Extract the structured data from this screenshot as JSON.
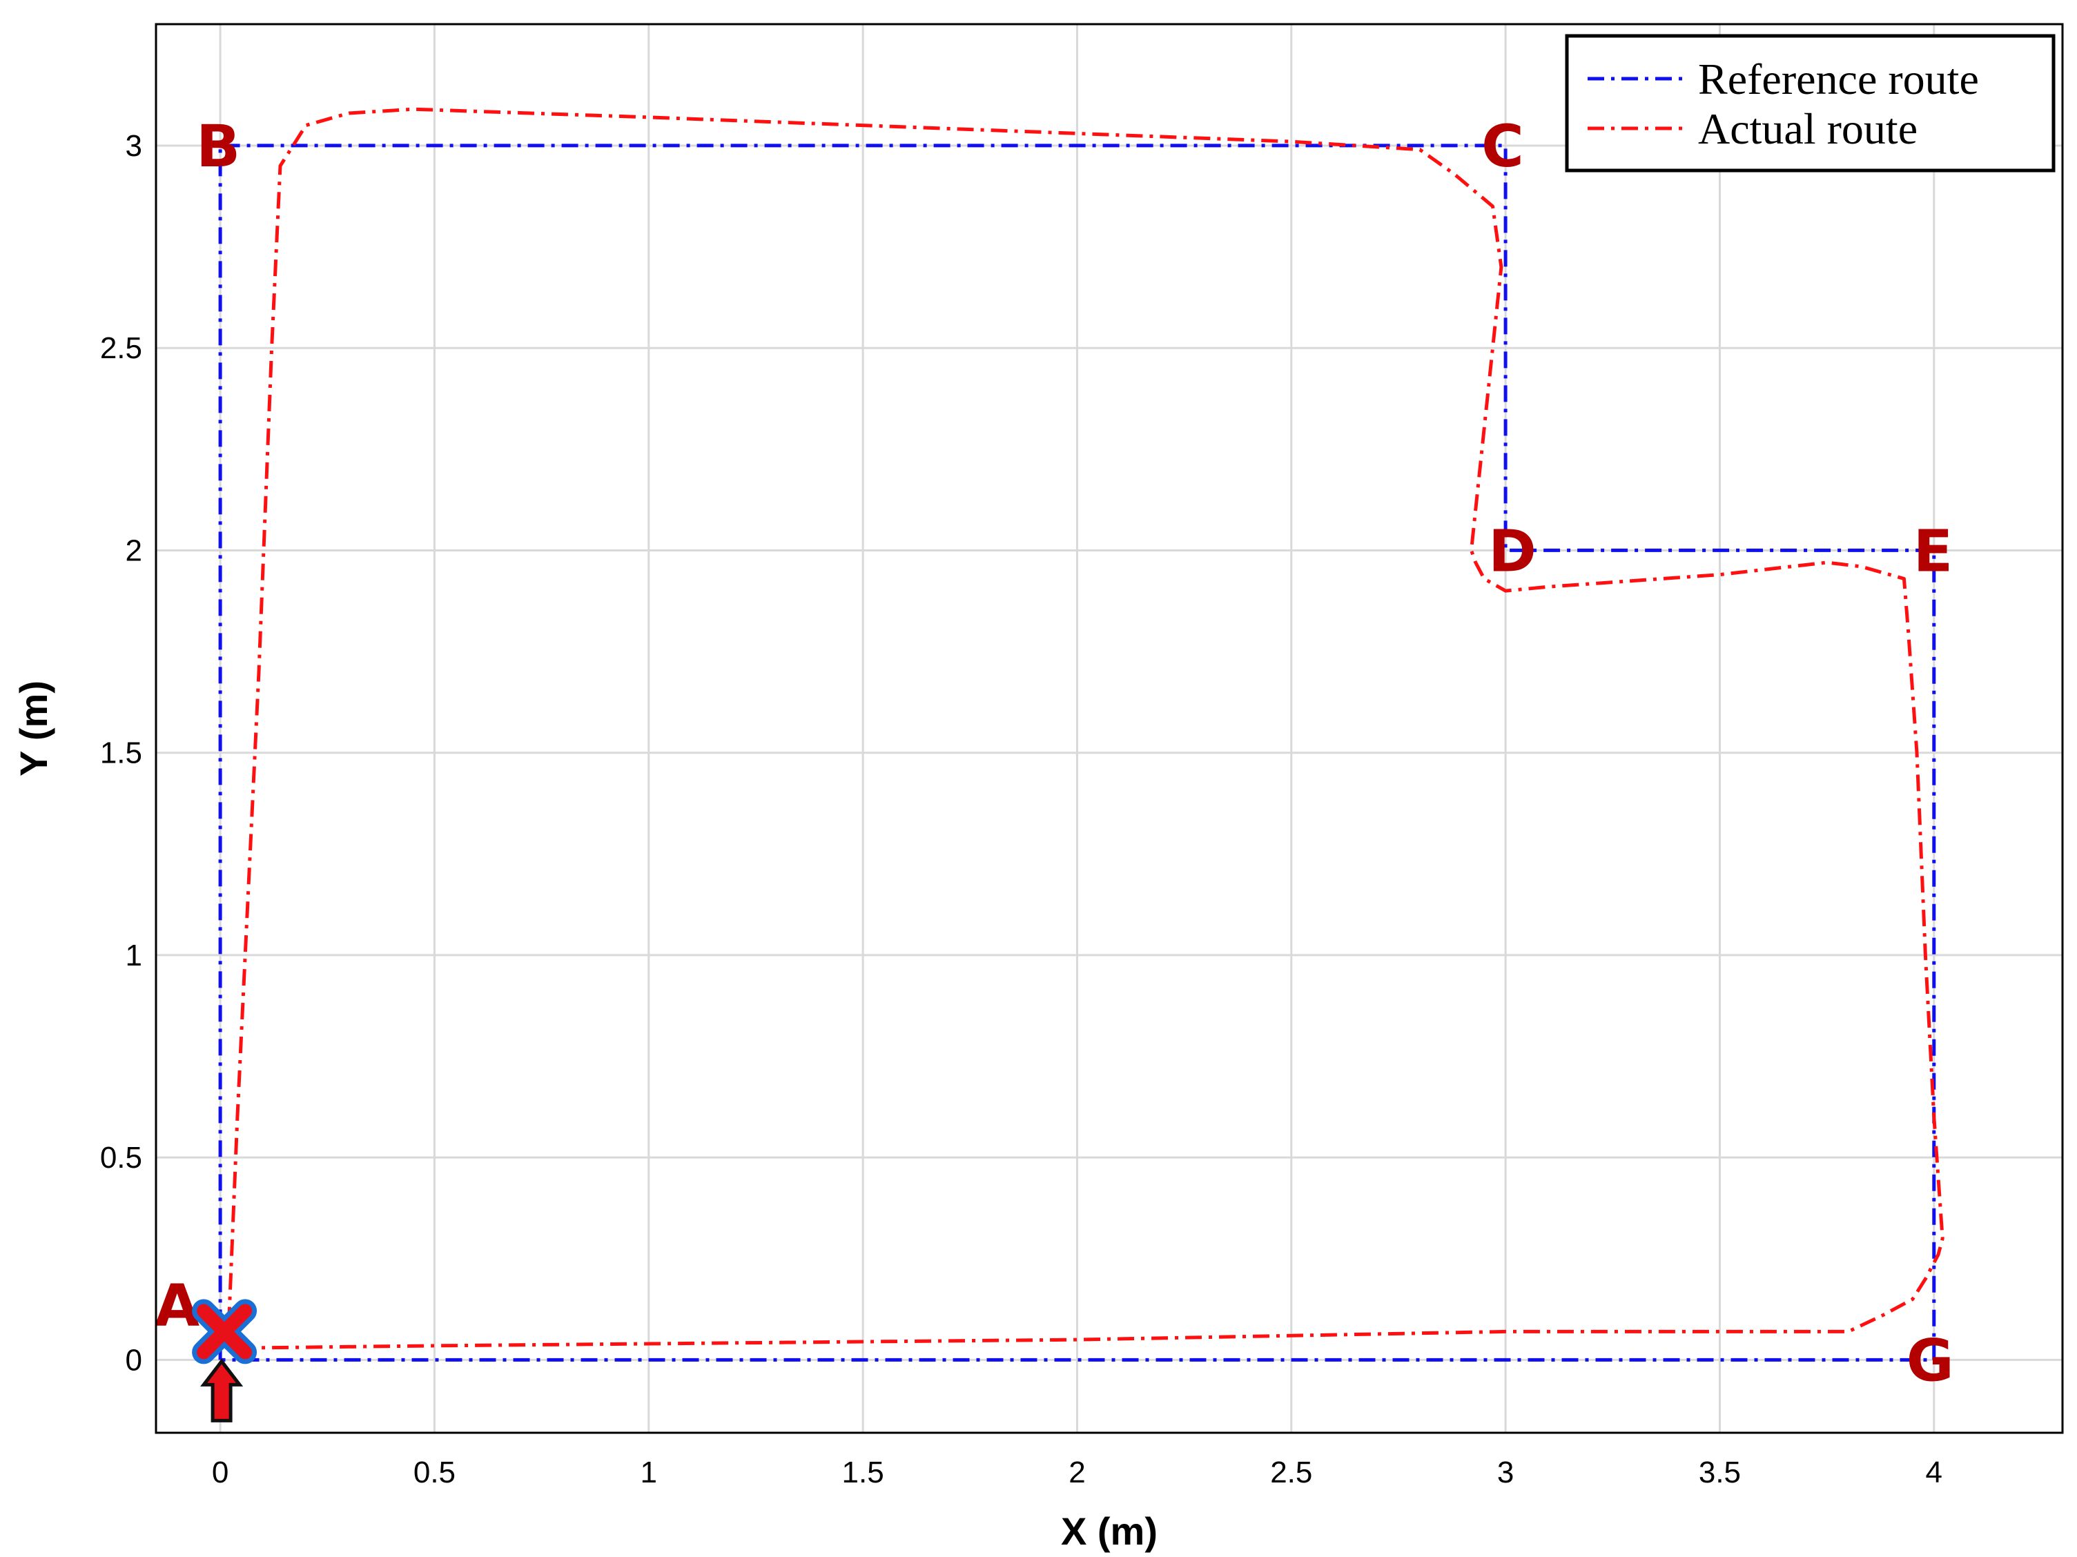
{
  "chart_data": {
    "type": "line",
    "xlabel": "X (m)",
    "ylabel": "Y (m)",
    "xlim": [
      -0.15,
      4.3
    ],
    "ylim": [
      -0.18,
      3.3
    ],
    "xticks": [
      "0",
      "0.5",
      "1",
      "1.5",
      "2",
      "2.5",
      "3",
      "3.5",
      "4"
    ],
    "xtick_values": [
      0,
      0.5,
      1,
      1.5,
      2,
      2.5,
      3,
      3.5,
      4
    ],
    "yticks": [
      "0",
      "0.5",
      "1",
      "1.5",
      "2",
      "2.5",
      "3"
    ],
    "ytick_values": [
      0,
      0.5,
      1,
      1.5,
      2,
      2.5,
      3
    ],
    "grid": true,
    "legend_position": "top-right",
    "series": [
      {
        "name": "Reference route",
        "color": "#1010ee",
        "style": "dash-dot",
        "x": [
          0,
          0,
          3,
          3,
          4,
          4,
          0
        ],
        "y": [
          0,
          3,
          3,
          2,
          2,
          0,
          0
        ]
      },
      {
        "name": "Actual route",
        "color": "#ff1010",
        "style": "dash-dot",
        "x": [
          0.02,
          0.04,
          0.09,
          0.12,
          0.14,
          0.2,
          0.3,
          0.45,
          1.0,
          2.0,
          2.5,
          2.8,
          2.88,
          2.97,
          2.99,
          2.95,
          2.93,
          2.92,
          2.93,
          2.95,
          3.0,
          3.1,
          3.5,
          3.75,
          3.83,
          3.93,
          3.94,
          3.96,
          3.98,
          4.0,
          4.02,
          4.01,
          3.98,
          3.95,
          3.88,
          3.8,
          3.5,
          3.0,
          2.0,
          1.0,
          0.5,
          0.1,
          0.04
        ],
        "y": [
          0.09,
          0.6,
          1.7,
          2.5,
          2.95,
          3.05,
          3.08,
          3.09,
          3.07,
          3.03,
          3.01,
          2.99,
          2.93,
          2.85,
          2.7,
          2.3,
          2.1,
          2.0,
          1.97,
          1.93,
          1.9,
          1.91,
          1.94,
          1.97,
          1.96,
          1.93,
          1.8,
          1.5,
          1.0,
          0.6,
          0.3,
          0.26,
          0.2,
          0.15,
          0.11,
          0.07,
          0.07,
          0.07,
          0.05,
          0.04,
          0.035,
          0.03,
          0.03
        ]
      }
    ],
    "points": [
      {
        "label": "A",
        "x": 0,
        "y": 0
      },
      {
        "label": "B",
        "x": 0,
        "y": 3
      },
      {
        "label": "C",
        "x": 3,
        "y": 3
      },
      {
        "label": "D",
        "x": 3,
        "y": 2
      },
      {
        "label": "E",
        "x": 4,
        "y": 2
      },
      {
        "label": "G",
        "x": 4,
        "y": 0
      }
    ],
    "label_color": "#b30000"
  }
}
